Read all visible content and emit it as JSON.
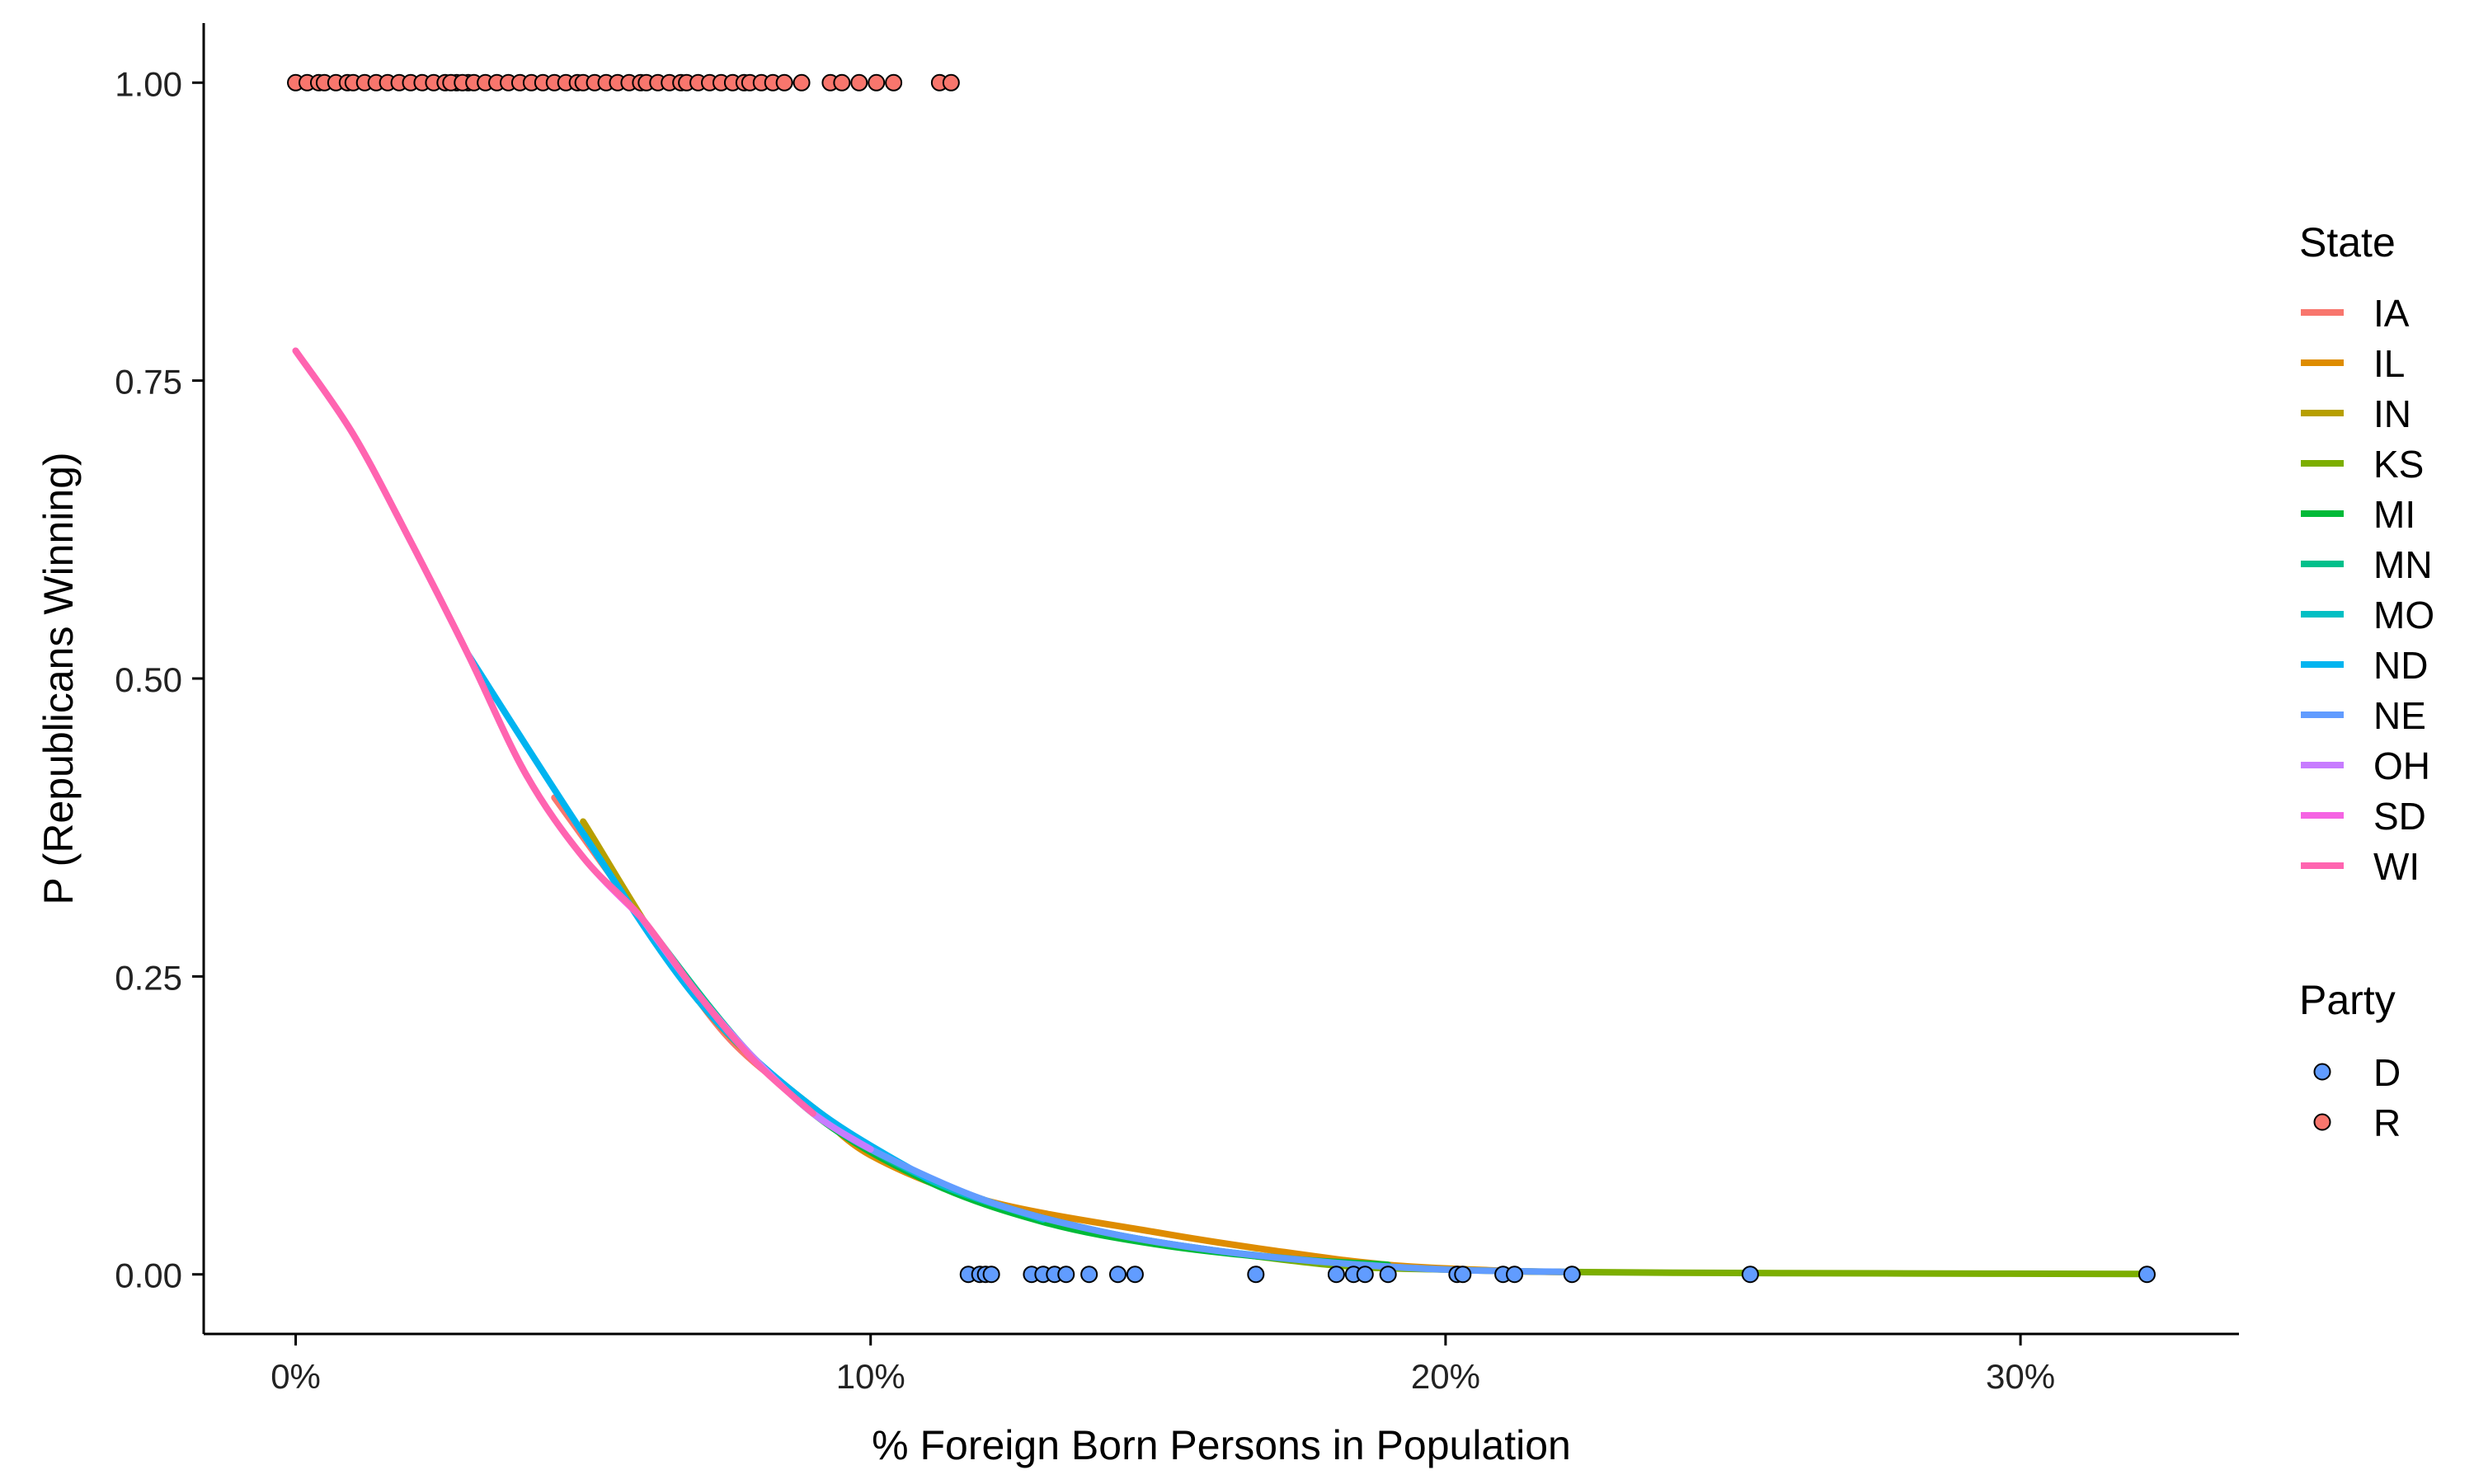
{
  "chart_data": {
    "type": "scatter",
    "title": "",
    "xlabel": "% Foreign Born Persons in Population",
    "ylabel": "P (Republicans Winning)",
    "xlim": [
      -0.016,
      0.338
    ],
    "ylim": [
      -0.05,
      1.05
    ],
    "x_ticks": [
      0,
      0.1,
      0.2,
      0.3
    ],
    "x_tick_labels": [
      "0%",
      "10%",
      "20%",
      "30%"
    ],
    "y_ticks": [
      0,
      0.25,
      0.5,
      0.75,
      1.0
    ],
    "y_tick_labels": [
      "0.00",
      "0.25",
      "0.50",
      "0.75",
      "1.00"
    ],
    "grid": false,
    "legends": [
      {
        "title": "State",
        "kind": "line",
        "entries": [
          "IA",
          "IL",
          "IN",
          "KS",
          "MI",
          "MN",
          "MO",
          "ND",
          "NE",
          "OH",
          "SD",
          "WI"
        ]
      },
      {
        "title": "Party",
        "kind": "point",
        "entries": [
          "D",
          "R"
        ]
      }
    ],
    "legend_position": "right",
    "colors": {
      "IA": "#F8766D",
      "IL": "#DE8C00",
      "IN": "#B79F00",
      "KS": "#7CAE00",
      "MI": "#00BA38",
      "MN": "#00C08B",
      "MO": "#00BFC4",
      "ND": "#00B4F0",
      "NE": "#619CFF",
      "OH": "#C77CFF",
      "SD": "#F564E3",
      "WI": "#FF64B0",
      "D": "#619CFF",
      "R": "#F8766D"
    },
    "points": {
      "R": {
        "y": 1.0,
        "x": [
          0.0,
          0.002,
          0.004,
          0.005,
          0.007,
          0.009,
          0.01,
          0.012,
          0.014,
          0.016,
          0.018,
          0.02,
          0.022,
          0.024,
          0.026,
          0.028,
          0.03,
          0.027,
          0.029,
          0.031,
          0.033,
          0.035,
          0.037,
          0.039,
          0.041,
          0.043,
          0.045,
          0.047,
          0.049,
          0.05,
          0.052,
          0.054,
          0.056,
          0.058,
          0.06,
          0.061,
          0.063,
          0.065,
          0.067,
          0.068,
          0.07,
          0.072,
          0.074,
          0.076,
          0.078,
          0.079,
          0.081,
          0.083,
          0.085,
          0.088,
          0.093,
          0.095,
          0.098,
          0.101,
          0.104,
          0.112,
          0.114
        ]
      },
      "D": {
        "y": 0.0,
        "x": [
          0.117,
          0.119,
          0.12,
          0.121,
          0.128,
          0.13,
          0.132,
          0.134,
          0.138,
          0.143,
          0.146,
          0.167,
          0.181,
          0.184,
          0.186,
          0.19,
          0.202,
          0.203,
          0.21,
          0.212,
          0.222,
          0.253,
          0.322
        ]
      }
    },
    "series": [
      {
        "name": "IA",
        "x": [
          0.045,
          0.06,
          0.075,
          0.09,
          0.1,
          0.11,
          0.12
        ],
        "y": [
          0.4,
          0.3,
          0.2,
          0.14,
          0.105,
          0.08,
          0.062
        ]
      },
      {
        "name": "IL",
        "x": [
          0.09,
          0.1,
          0.12,
          0.15,
          0.17,
          0.19,
          0.21,
          0.22
        ],
        "y": [
          0.14,
          0.1,
          0.062,
          0.035,
          0.02,
          0.008,
          0.003,
          0.002
        ]
      },
      {
        "name": "IN",
        "x": [
          0.05,
          0.07,
          0.09,
          0.11,
          0.13,
          0.15
        ],
        "y": [
          0.38,
          0.23,
          0.14,
          0.08,
          0.045,
          0.026
        ]
      },
      {
        "name": "KS",
        "x": [
          0.15,
          0.18,
          0.2,
          0.22,
          0.25,
          0.28,
          0.322
        ],
        "y": [
          0.026,
          0.008,
          0.004,
          0.002,
          0.0012,
          0.0008,
          0.0003
        ]
      },
      {
        "name": "MI",
        "x": [
          0.07,
          0.09,
          0.11,
          0.13,
          0.15,
          0.17,
          0.19
        ],
        "y": [
          0.23,
          0.135,
          0.078,
          0.044,
          0.025,
          0.014,
          0.008
        ]
      },
      {
        "name": "MN",
        "x": [
          0.06,
          0.08,
          0.1,
          0.12,
          0.14,
          0.16,
          0.18
        ],
        "y": [
          0.3,
          0.18,
          0.105,
          0.062,
          0.036,
          0.02,
          0.01
        ]
      },
      {
        "name": "MO",
        "x": [
          0.05,
          0.07,
          0.09,
          0.11,
          0.13
        ],
        "y": [
          0.37,
          0.23,
          0.14,
          0.08,
          0.046
        ]
      },
      {
        "name": "ND",
        "x": [
          0.03,
          0.05,
          0.07,
          0.09,
          0.11
        ],
        "y": [
          0.52,
          0.37,
          0.23,
          0.14,
          0.08
        ]
      },
      {
        "name": "NE",
        "x": [
          0.09,
          0.1,
          0.12,
          0.14,
          0.16,
          0.18,
          0.2,
          0.222
        ],
        "y": [
          0.135,
          0.105,
          0.062,
          0.036,
          0.02,
          0.01,
          0.004,
          0.002
        ]
      },
      {
        "name": "OH",
        "x": [
          0.06,
          0.07,
          0.08,
          0.09,
          0.1
        ],
        "y": [
          0.3,
          0.235,
          0.18,
          0.135,
          0.105
        ]
      },
      {
        "name": "SD",
        "x": [
          0.0,
          0.01,
          0.02,
          0.03,
          0.04,
          0.05,
          0.06
        ],
        "y": [
          0.775,
          0.705,
          0.615,
          0.52,
          0.42,
          0.35,
          0.3
        ]
      },
      {
        "name": "WI",
        "x": [
          0.0,
          0.01,
          0.02,
          0.03,
          0.04,
          0.05,
          0.06,
          0.07,
          0.08,
          0.09
        ],
        "y": [
          0.775,
          0.705,
          0.615,
          0.52,
          0.42,
          0.35,
          0.3,
          0.235,
          0.178,
          0.135
        ]
      }
    ]
  }
}
